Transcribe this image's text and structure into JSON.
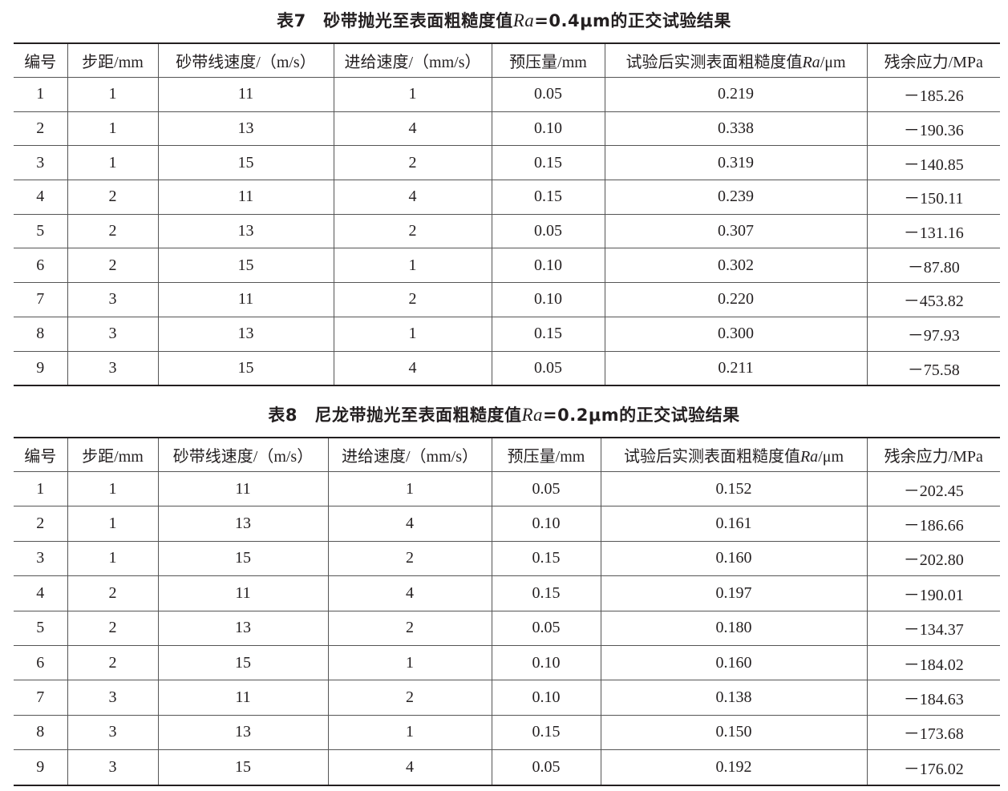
{
  "tables": [
    {
      "title": {
        "prefix": "表7　砂带抛光至表面粗糙度值",
        "italic": "Ra",
        "suffix": "=0.4μm的正交试验结果"
      },
      "headers": [
        {
          "text": "编号"
        },
        {
          "text": "步距/mm"
        },
        {
          "text": "砂带线速度/（m/s）"
        },
        {
          "text": "进给速度/（mm/s）"
        },
        {
          "text": "预压量/mm"
        },
        {
          "prefix": "试验后实测表面粗糙度值",
          "italic": "Ra",
          "suffix": "/μm"
        },
        {
          "text": "残余应力/MPa"
        }
      ],
      "rows": [
        [
          "1",
          "1",
          "11",
          "1",
          "0.05",
          "0.219",
          "－185.26"
        ],
        [
          "2",
          "1",
          "13",
          "4",
          "0.10",
          "0.338",
          "－190.36"
        ],
        [
          "3",
          "1",
          "15",
          "2",
          "0.15",
          "0.319",
          "－140.85"
        ],
        [
          "4",
          "2",
          "11",
          "4",
          "0.15",
          "0.239",
          "－150.11"
        ],
        [
          "5",
          "2",
          "13",
          "2",
          "0.05",
          "0.307",
          "－131.16"
        ],
        [
          "6",
          "2",
          "15",
          "1",
          "0.10",
          "0.302",
          "－87.80"
        ],
        [
          "7",
          "3",
          "11",
          "2",
          "0.10",
          "0.220",
          "－453.82"
        ],
        [
          "8",
          "3",
          "13",
          "1",
          "0.15",
          "0.300",
          "－97.93"
        ],
        [
          "9",
          "3",
          "15",
          "4",
          "0.05",
          "0.211",
          "－75.58"
        ]
      ]
    },
    {
      "title": {
        "prefix": "表8　尼龙带抛光至表面粗糙度值",
        "italic": "Ra",
        "suffix": "=0.2μm的正交试验结果"
      },
      "headers": [
        {
          "text": "编号"
        },
        {
          "text": "步距/mm"
        },
        {
          "text": "砂带线速度/（m/s）"
        },
        {
          "text": "进给速度/（mm/s）"
        },
        {
          "text": "预压量/mm"
        },
        {
          "prefix": "试验后实测表面粗糙度值",
          "italic": "Ra",
          "suffix": "/μm"
        },
        {
          "text": "残余应力/MPa"
        }
      ],
      "rows": [
        [
          "1",
          "1",
          "11",
          "1",
          "0.05",
          "0.152",
          "－202.45"
        ],
        [
          "2",
          "1",
          "13",
          "4",
          "0.10",
          "0.161",
          "－186.66"
        ],
        [
          "3",
          "1",
          "15",
          "2",
          "0.15",
          "0.160",
          "－202.80"
        ],
        [
          "4",
          "2",
          "11",
          "4",
          "0.15",
          "0.197",
          "－190.01"
        ],
        [
          "5",
          "2",
          "13",
          "2",
          "0.05",
          "0.180",
          "－134.37"
        ],
        [
          "6",
          "2",
          "15",
          "1",
          "0.10",
          "0.160",
          "－184.02"
        ],
        [
          "7",
          "3",
          "11",
          "2",
          "0.10",
          "0.138",
          "－184.63"
        ],
        [
          "8",
          "3",
          "13",
          "1",
          "0.15",
          "0.150",
          "－173.68"
        ],
        [
          "9",
          "3",
          "15",
          "4",
          "0.05",
          "0.192",
          "－176.02"
        ]
      ]
    }
  ]
}
